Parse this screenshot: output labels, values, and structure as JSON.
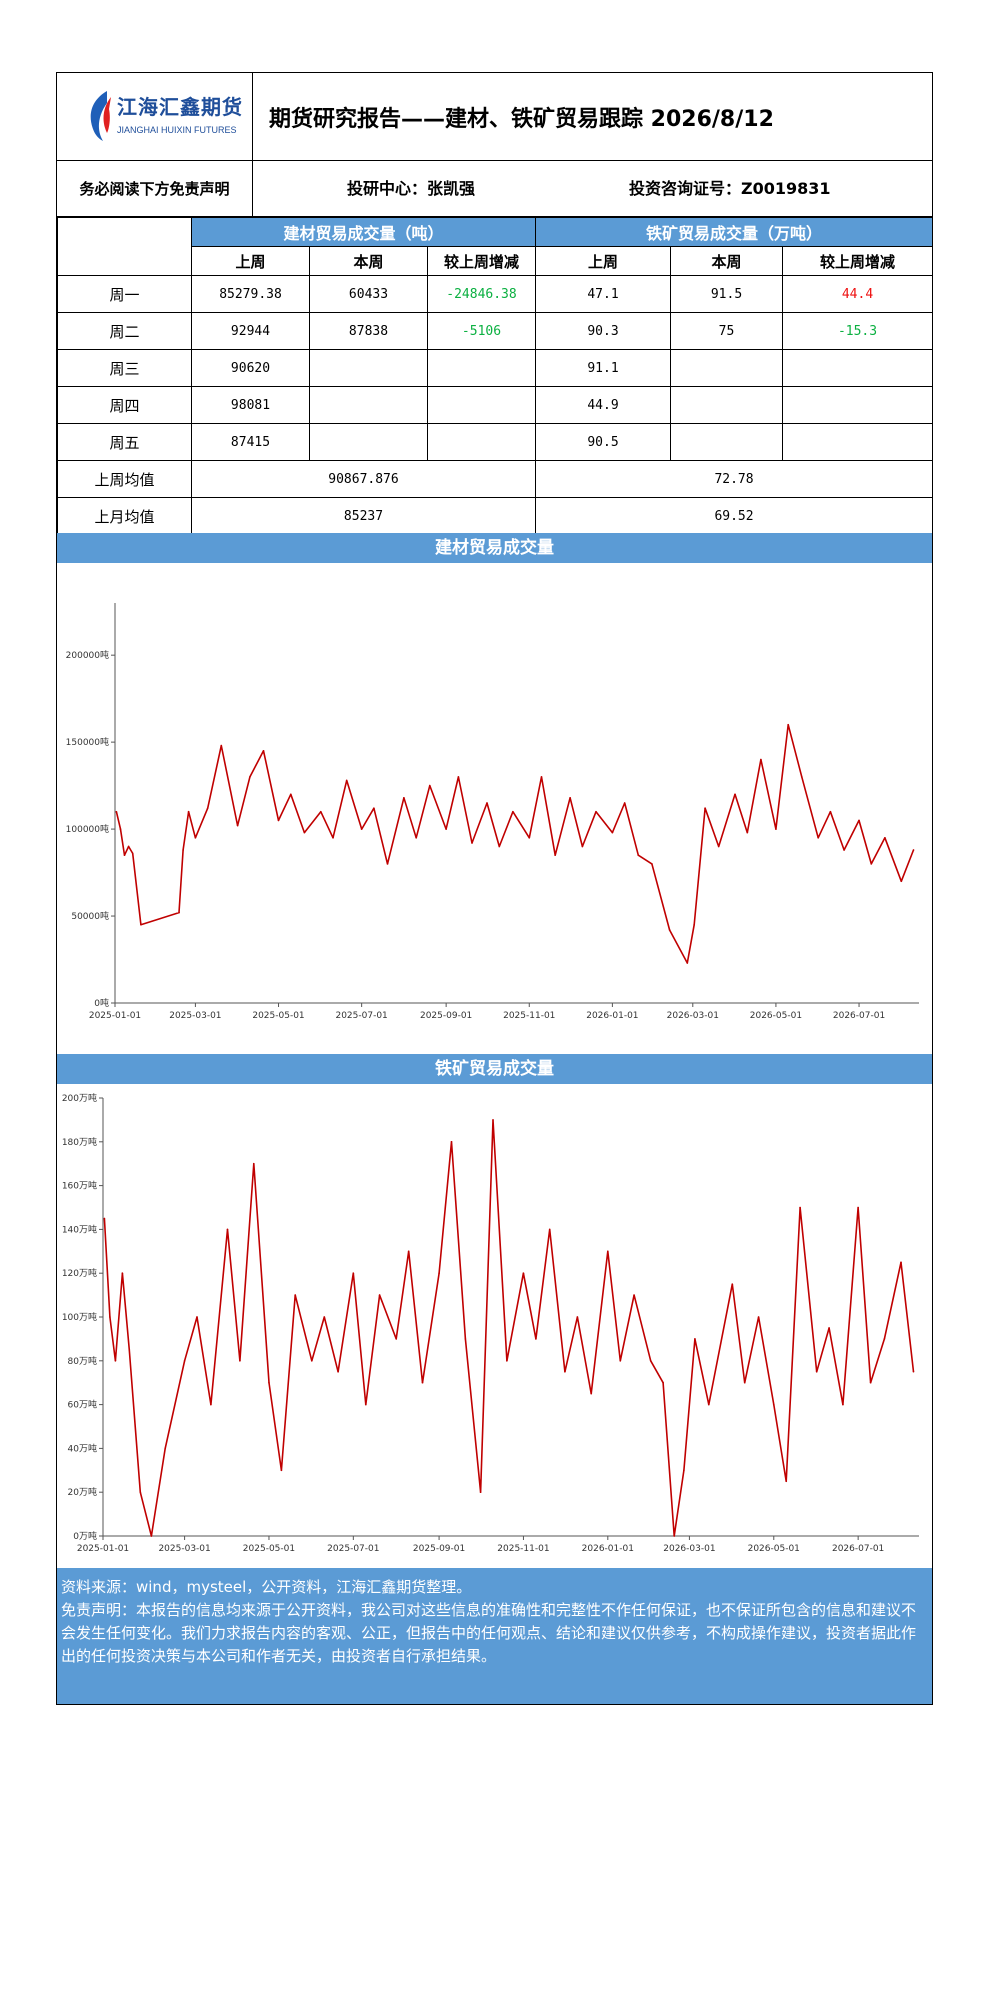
{
  "header": {
    "logo_cn": "江海汇鑫期货",
    "logo_en": "JIANGHAI HUIXIN FUTURES",
    "title": "期货研究报告——建材、铁矿贸易跟踪 2026/8/12",
    "disclaimer_link": "务必阅读下方免责声明",
    "analyst": "投研中心：张凯强",
    "license": "投资咨询证号：Z0019831"
  },
  "table": {
    "group_headers": [
      "建材贸易成交量（吨）",
      "铁矿贸易成交量（万吨）"
    ],
    "sub_headers": [
      "上周",
      "本周",
      "较上周增减",
      "上周",
      "本周",
      "较上周增减"
    ],
    "rows": [
      {
        "day": "周一",
        "cells": [
          "85279.38",
          "60433",
          "-24846.38",
          "47.1",
          "91.5",
          "44.4"
        ]
      },
      {
        "day": "周二",
        "cells": [
          "92944",
          "87838",
          "-5106",
          "90.3",
          "75",
          "-15.3"
        ]
      },
      {
        "day": "周三",
        "cells": [
          "90620",
          "",
          "",
          "91.1",
          "",
          ""
        ]
      },
      {
        "day": "周四",
        "cells": [
          "98081",
          "",
          "",
          "44.9",
          "",
          ""
        ]
      },
      {
        "day": "周五",
        "cells": [
          "87415",
          "",
          "",
          "90.5",
          "",
          ""
        ]
      }
    ],
    "summary": [
      {
        "label": "上周均值",
        "building": "90867.876",
        "ore": "72.78"
      },
      {
        "label": "上月均值",
        "building": "85237",
        "ore": "69.52"
      }
    ],
    "colors": {
      "increase": "#ee1111",
      "decrease": "#0bb041",
      "header_bg": "#5b9bd5"
    }
  },
  "charts_section": {
    "building_title": "建材贸易成交量",
    "ore_title": "铁矿贸易成交量"
  },
  "chart_data": [
    {
      "type": "line",
      "title": "建材贸易成交量",
      "series_color": "#c00000",
      "x_ticks": [
        "2025-01-01",
        "2025-03-01",
        "2025-05-01",
        "2025-07-01",
        "2025-09-01",
        "2025-11-01",
        "2026-01-01",
        "2026-03-01",
        "2026-05-01",
        "2026-07-01"
      ],
      "y_ticks": [
        "0吨",
        "50000吨",
        "100000吨",
        "150000吨",
        "200000吨"
      ],
      "ylim": [
        0,
        230000
      ],
      "x": [
        "2025-01-02",
        "2025-01-05",
        "2025-01-08",
        "2025-01-11",
        "2025-01-14",
        "2025-01-20",
        "2025-02-17",
        "2025-02-20",
        "2025-02-24",
        "2025-03-01",
        "2025-03-10",
        "2025-03-20",
        "2025-04-01",
        "2025-04-10",
        "2025-04-20",
        "2025-05-01",
        "2025-05-10",
        "2025-05-20",
        "2025-06-01",
        "2025-06-10",
        "2025-06-20",
        "2025-07-01",
        "2025-07-10",
        "2025-07-20",
        "2025-08-01",
        "2025-08-10",
        "2025-08-20",
        "2025-09-01",
        "2025-09-10",
        "2025-09-20",
        "2025-10-01",
        "2025-10-10",
        "2025-10-20",
        "2025-11-01",
        "2025-11-10",
        "2025-11-20",
        "2025-12-01",
        "2025-12-10",
        "2025-12-20",
        "2026-01-01",
        "2026-01-10",
        "2026-01-20",
        "2026-01-30",
        "2026-02-12",
        "2026-02-25",
        "2026-03-02",
        "2026-03-10",
        "2026-03-20",
        "2026-04-01",
        "2026-04-10",
        "2026-04-20",
        "2026-05-01",
        "2026-05-10",
        "2026-05-20",
        "2026-06-01",
        "2026-06-10",
        "2026-06-20",
        "2026-07-01",
        "2026-07-10",
        "2026-07-20",
        "2026-08-01",
        "2026-08-10"
      ],
      "y": [
        110000,
        100000,
        85000,
        90000,
        86000,
        45000,
        52000,
        88000,
        110000,
        95000,
        112000,
        148000,
        102000,
        130000,
        145000,
        105000,
        120000,
        98000,
        110000,
        95000,
        128000,
        100000,
        112000,
        80000,
        118000,
        95000,
        125000,
        100000,
        130000,
        92000,
        115000,
        90000,
        110000,
        95000,
        130000,
        85000,
        118000,
        90000,
        110000,
        98000,
        115000,
        85000,
        80000,
        42000,
        23000,
        45000,
        112000,
        90000,
        120000,
        98000,
        140000,
        100000,
        160000,
        130000,
        95000,
        110000,
        88000,
        105000,
        80000,
        95000,
        70000,
        88000
      ]
    },
    {
      "type": "line",
      "title": "铁矿贸易成交量",
      "series_color": "#c00000",
      "x_ticks": [
        "2025-01-01",
        "2025-03-01",
        "2025-05-01",
        "2025-07-01",
        "2025-09-01",
        "2025-11-01",
        "2026-01-01",
        "2026-03-01",
        "2026-05-01",
        "2026-07-01"
      ],
      "y_ticks": [
        "0万吨",
        "20万吨",
        "40万吨",
        "60万吨",
        "80万吨",
        "100万吨",
        "120万吨",
        "140万吨",
        "160万吨",
        "180万吨",
        "200万吨"
      ],
      "ylim": [
        0,
        200
      ],
      "x": [
        "2025-01-02",
        "2025-01-06",
        "2025-01-10",
        "2025-01-15",
        "2025-01-20",
        "2025-01-28",
        "2025-02-05",
        "2025-02-15",
        "2025-03-01",
        "2025-03-10",
        "2025-03-20",
        "2025-04-01",
        "2025-04-10",
        "2025-04-20",
        "2025-05-01",
        "2025-05-10",
        "2025-05-20",
        "2025-06-01",
        "2025-06-10",
        "2025-06-20",
        "2025-07-01",
        "2025-07-10",
        "2025-07-20",
        "2025-08-01",
        "2025-08-10",
        "2025-08-20",
        "2025-09-01",
        "2025-09-10",
        "2025-09-20",
        "2025-10-01",
        "2025-10-10",
        "2025-10-20",
        "2025-11-01",
        "2025-11-10",
        "2025-11-20",
        "2025-12-01",
        "2025-12-10",
        "2025-12-20",
        "2026-01-01",
        "2026-01-10",
        "2026-01-20",
        "2026-02-01",
        "2026-02-10",
        "2026-02-18",
        "2026-02-25",
        "2026-03-05",
        "2026-03-15",
        "2026-04-01",
        "2026-04-10",
        "2026-04-20",
        "2026-05-01",
        "2026-05-10",
        "2026-05-20",
        "2026-06-01",
        "2026-06-10",
        "2026-06-20",
        "2026-07-01",
        "2026-07-10",
        "2026-07-20",
        "2026-08-01",
        "2026-08-10"
      ],
      "y": [
        145,
        100,
        80,
        120,
        85,
        20,
        0,
        40,
        80,
        100,
        60,
        140,
        80,
        170,
        70,
        30,
        110,
        80,
        100,
        75,
        120,
        60,
        110,
        90,
        130,
        70,
        120,
        180,
        90,
        20,
        190,
        80,
        120,
        90,
        140,
        75,
        100,
        65,
        130,
        80,
        110,
        80,
        70,
        0,
        30,
        90,
        60,
        115,
        70,
        100,
        60,
        25,
        150,
        75,
        95,
        60,
        150,
        70,
        90,
        125,
        75
      ]
    }
  ],
  "footer": {
    "source": "资料来源：wind，mysteel，公开资料，江海汇鑫期货整理。",
    "disclaimer": "免责声明：本报告的信息均来源于公开资料，我公司对这些信息的准确性和完整性不作任何保证，也不保证所包含的信息和建议不会发生任何变化。我们力求报告内容的客观、公正，但报告中的任何观点、结论和建议仅供参考，不构成操作建议，投资者据此作出的任何投资决策与本公司和作者无关，由投资者自行承担结果。"
  }
}
